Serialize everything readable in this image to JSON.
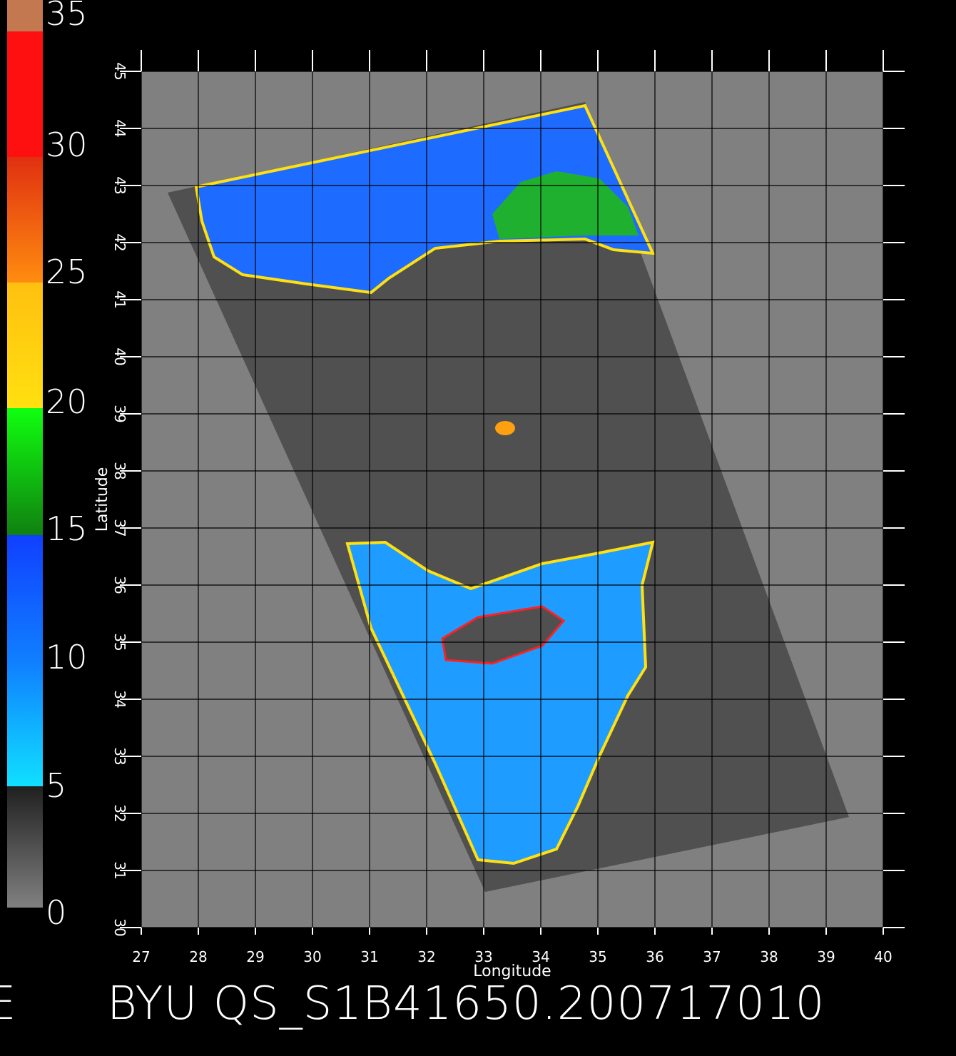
{
  "colorbar": {
    "labels": [
      "35",
      "30",
      "25",
      "20",
      "15",
      "10",
      "5",
      "0"
    ],
    "colors": {
      "top": "#c47850",
      "red": "#ff1010",
      "orange": "#ff8c10",
      "yellow": "#ffe010",
      "green": "#10c010",
      "blue": "#1040ff",
      "cyan": "#10e0ff",
      "gray_dark": "#202020",
      "gray_light": "#808080"
    }
  },
  "map": {
    "xlabel": "Longitude",
    "ylabel": "Latitude",
    "x_ticks": [
      "27",
      "28",
      "29",
      "30",
      "31",
      "32",
      "33",
      "34",
      "35",
      "36",
      "37",
      "38",
      "39",
      "40"
    ],
    "y_ticks": [
      "30",
      "31",
      "32",
      "33",
      "34",
      "35",
      "36",
      "37",
      "38",
      "39",
      "40",
      "41",
      "42",
      "43",
      "44",
      "45"
    ],
    "xlim": [
      27,
      40
    ],
    "ylim": [
      30,
      45
    ],
    "background_color": "#808080",
    "swath_color": "#505050",
    "ocean_color": "#1e78ff"
  },
  "footer": {
    "title": "BYU QS_S1B41650.200717010",
    "left_fragment": "E"
  }
}
